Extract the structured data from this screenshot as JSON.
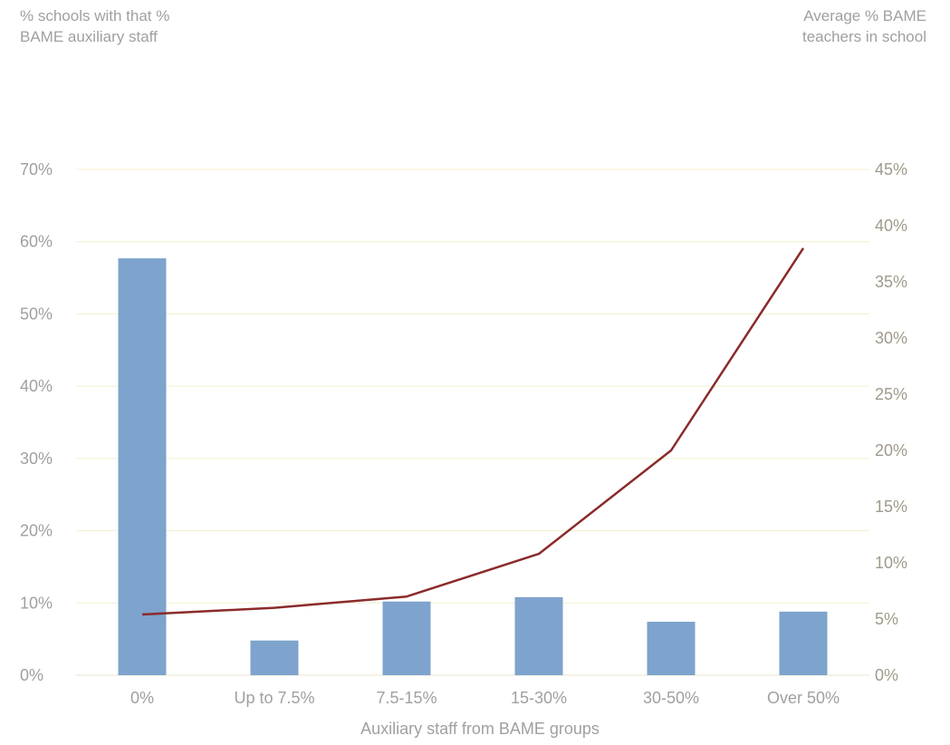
{
  "chart_data": {
    "type": "bar",
    "categories": [
      "0%",
      "Up to 7.5%",
      "7.5-15%",
      "15-30%",
      "30-50%",
      "Over 50%"
    ],
    "series": [
      {
        "type": "bar",
        "axis": "left",
        "color": "#7ea3cd",
        "values": [
          57.7,
          4.8,
          10.2,
          10.8,
          7.4,
          8.8
        ]
      },
      {
        "type": "line",
        "axis": "right",
        "color": "#8b2a2a",
        "values": [
          5.4,
          6.0,
          7.0,
          10.8,
          20.0,
          38.0
        ]
      }
    ],
    "xlabel": "Auxiliary staff from BAME groups",
    "ylabel_left": [
      "% schools with that %",
      "BAME auxiliary staff"
    ],
    "ylabel_right": [
      "Average % BAME",
      "teachers in school"
    ],
    "ylim_left": [
      0,
      70
    ],
    "ylim_right": [
      0,
      45
    ],
    "yticks_left": [
      "0%",
      "10%",
      "20%",
      "30%",
      "40%",
      "50%",
      "60%",
      "70%"
    ],
    "yticks_right": [
      "0%",
      "5%",
      "10%",
      "15%",
      "20%",
      "25%",
      "30%",
      "35%",
      "40%",
      "45%"
    ],
    "grid": true,
    "colors": {
      "bar": "#7ea3cd",
      "line": "#8b2a2a",
      "grid": "#f3efcf",
      "axis_text": "#a0a0a0",
      "right_axis_text": "#a09a8a"
    }
  }
}
